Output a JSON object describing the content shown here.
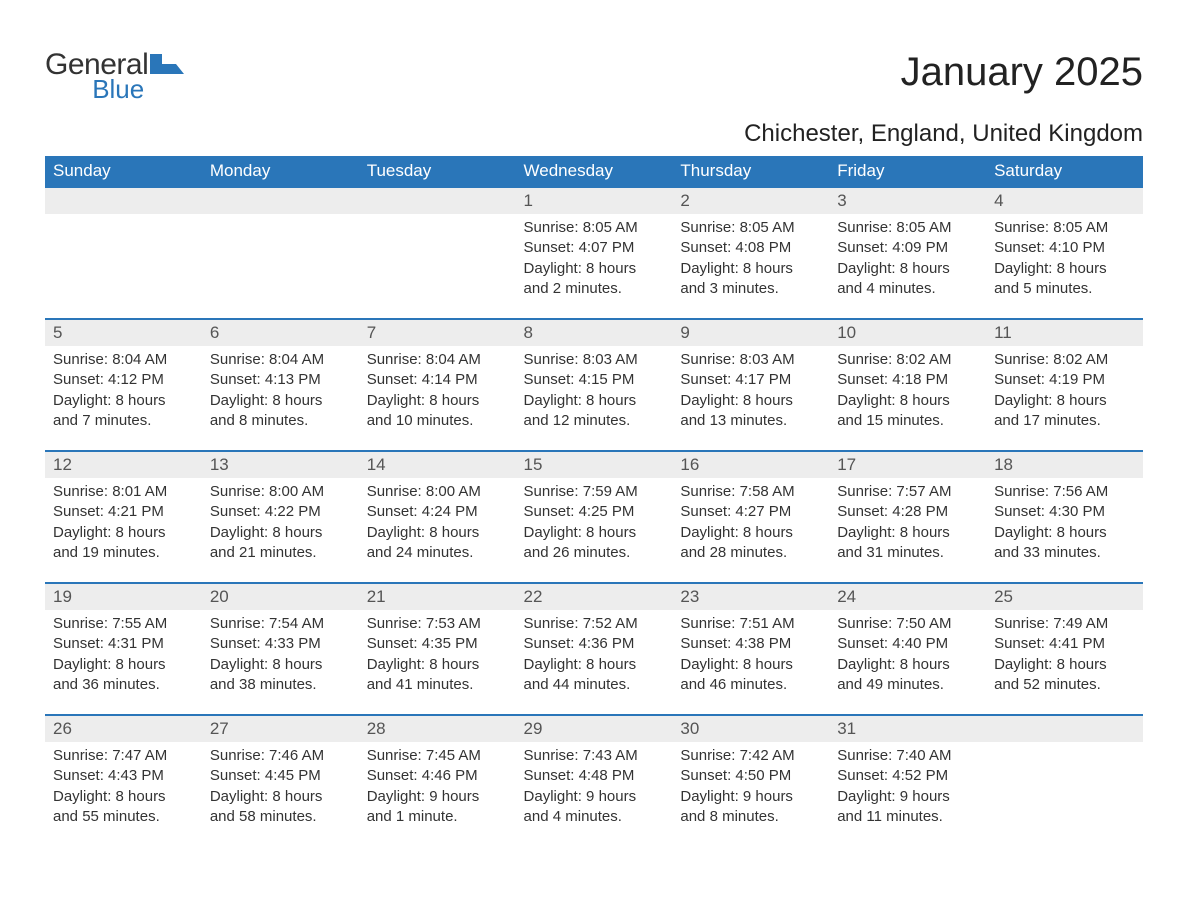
{
  "logo": {
    "general": "General",
    "blue": "Blue",
    "mark_color": "#2a76b9"
  },
  "title": "January 2025",
  "location": "Chichester, England, United Kingdom",
  "colors": {
    "header_bg": "#2a76b9",
    "header_text": "#ffffff",
    "daynum_bg": "#ededed",
    "row_border": "#2a76b9",
    "body_text": "#333333"
  },
  "columns": [
    "Sunday",
    "Monday",
    "Tuesday",
    "Wednesday",
    "Thursday",
    "Friday",
    "Saturday"
  ],
  "weeks": [
    [
      null,
      null,
      null,
      {
        "n": "1",
        "sunrise": "8:05 AM",
        "sunset": "4:07 PM",
        "daylight": "8 hours and 2 minutes."
      },
      {
        "n": "2",
        "sunrise": "8:05 AM",
        "sunset": "4:08 PM",
        "daylight": "8 hours and 3 minutes."
      },
      {
        "n": "3",
        "sunrise": "8:05 AM",
        "sunset": "4:09 PM",
        "daylight": "8 hours and 4 minutes."
      },
      {
        "n": "4",
        "sunrise": "8:05 AM",
        "sunset": "4:10 PM",
        "daylight": "8 hours and 5 minutes."
      }
    ],
    [
      {
        "n": "5",
        "sunrise": "8:04 AM",
        "sunset": "4:12 PM",
        "daylight": "8 hours and 7 minutes."
      },
      {
        "n": "6",
        "sunrise": "8:04 AM",
        "sunset": "4:13 PM",
        "daylight": "8 hours and 8 minutes."
      },
      {
        "n": "7",
        "sunrise": "8:04 AM",
        "sunset": "4:14 PM",
        "daylight": "8 hours and 10 minutes."
      },
      {
        "n": "8",
        "sunrise": "8:03 AM",
        "sunset": "4:15 PM",
        "daylight": "8 hours and 12 minutes."
      },
      {
        "n": "9",
        "sunrise": "8:03 AM",
        "sunset": "4:17 PM",
        "daylight": "8 hours and 13 minutes."
      },
      {
        "n": "10",
        "sunrise": "8:02 AM",
        "sunset": "4:18 PM",
        "daylight": "8 hours and 15 minutes."
      },
      {
        "n": "11",
        "sunrise": "8:02 AM",
        "sunset": "4:19 PM",
        "daylight": "8 hours and 17 minutes."
      }
    ],
    [
      {
        "n": "12",
        "sunrise": "8:01 AM",
        "sunset": "4:21 PM",
        "daylight": "8 hours and 19 minutes."
      },
      {
        "n": "13",
        "sunrise": "8:00 AM",
        "sunset": "4:22 PM",
        "daylight": "8 hours and 21 minutes."
      },
      {
        "n": "14",
        "sunrise": "8:00 AM",
        "sunset": "4:24 PM",
        "daylight": "8 hours and 24 minutes."
      },
      {
        "n": "15",
        "sunrise": "7:59 AM",
        "sunset": "4:25 PM",
        "daylight": "8 hours and 26 minutes."
      },
      {
        "n": "16",
        "sunrise": "7:58 AM",
        "sunset": "4:27 PM",
        "daylight": "8 hours and 28 minutes."
      },
      {
        "n": "17",
        "sunrise": "7:57 AM",
        "sunset": "4:28 PM",
        "daylight": "8 hours and 31 minutes."
      },
      {
        "n": "18",
        "sunrise": "7:56 AM",
        "sunset": "4:30 PM",
        "daylight": "8 hours and 33 minutes."
      }
    ],
    [
      {
        "n": "19",
        "sunrise": "7:55 AM",
        "sunset": "4:31 PM",
        "daylight": "8 hours and 36 minutes."
      },
      {
        "n": "20",
        "sunrise": "7:54 AM",
        "sunset": "4:33 PM",
        "daylight": "8 hours and 38 minutes."
      },
      {
        "n": "21",
        "sunrise": "7:53 AM",
        "sunset": "4:35 PM",
        "daylight": "8 hours and 41 minutes."
      },
      {
        "n": "22",
        "sunrise": "7:52 AM",
        "sunset": "4:36 PM",
        "daylight": "8 hours and 44 minutes."
      },
      {
        "n": "23",
        "sunrise": "7:51 AM",
        "sunset": "4:38 PM",
        "daylight": "8 hours and 46 minutes."
      },
      {
        "n": "24",
        "sunrise": "7:50 AM",
        "sunset": "4:40 PM",
        "daylight": "8 hours and 49 minutes."
      },
      {
        "n": "25",
        "sunrise": "7:49 AM",
        "sunset": "4:41 PM",
        "daylight": "8 hours and 52 minutes."
      }
    ],
    [
      {
        "n": "26",
        "sunrise": "7:47 AM",
        "sunset": "4:43 PM",
        "daylight": "8 hours and 55 minutes."
      },
      {
        "n": "27",
        "sunrise": "7:46 AM",
        "sunset": "4:45 PM",
        "daylight": "8 hours and 58 minutes."
      },
      {
        "n": "28",
        "sunrise": "7:45 AM",
        "sunset": "4:46 PM",
        "daylight": "9 hours and 1 minute."
      },
      {
        "n": "29",
        "sunrise": "7:43 AM",
        "sunset": "4:48 PM",
        "daylight": "9 hours and 4 minutes."
      },
      {
        "n": "30",
        "sunrise": "7:42 AM",
        "sunset": "4:50 PM",
        "daylight": "9 hours and 8 minutes."
      },
      {
        "n": "31",
        "sunrise": "7:40 AM",
        "sunset": "4:52 PM",
        "daylight": "9 hours and 11 minutes."
      },
      null
    ]
  ],
  "labels": {
    "sunrise": "Sunrise: ",
    "sunset": "Sunset: ",
    "daylight": "Daylight: "
  }
}
